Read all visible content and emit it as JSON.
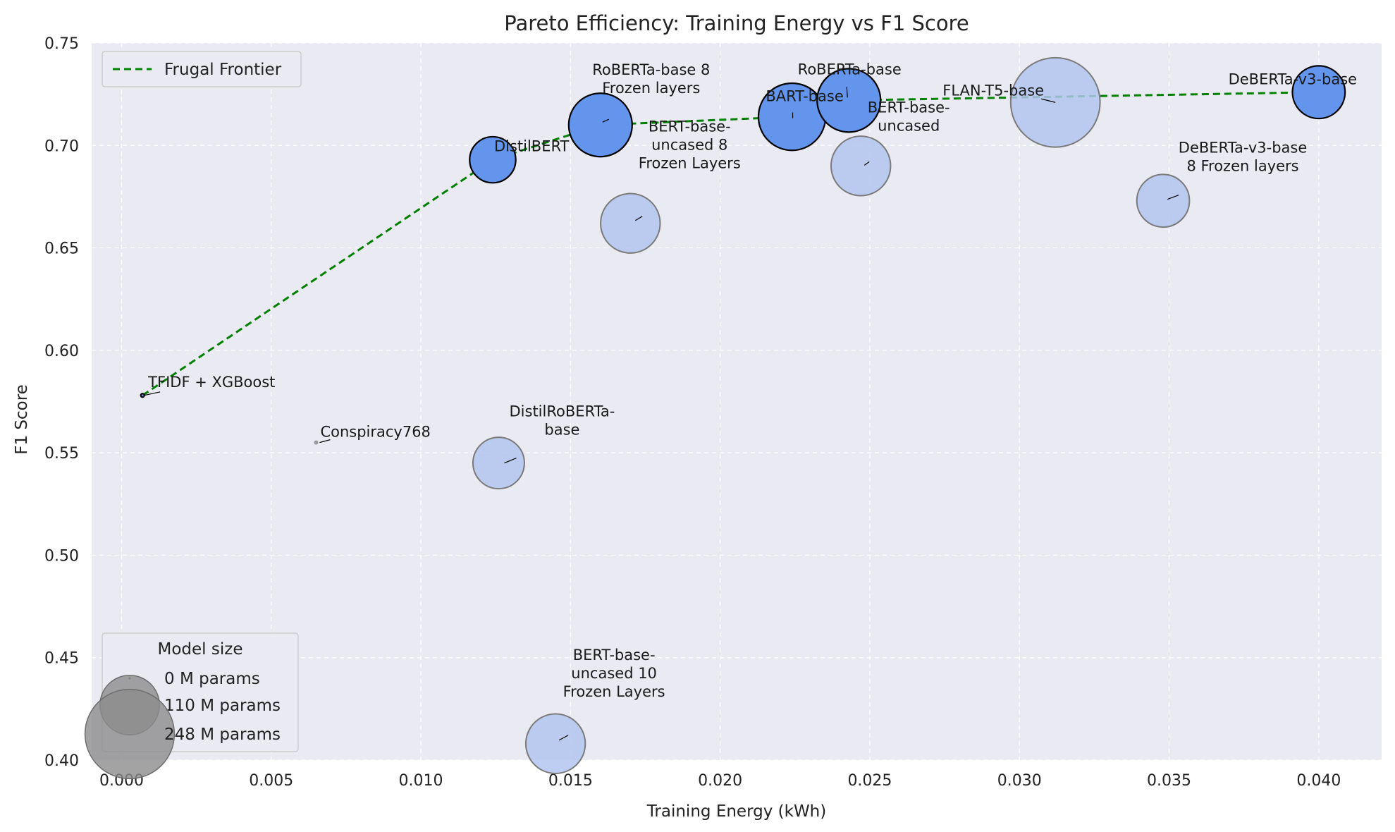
{
  "chart_data": {
    "type": "scatter",
    "title": "Pareto Efficiency: Training Energy vs F1 Score",
    "xlabel": "Training Energy (kWh)",
    "ylabel": "F1 Score",
    "xlim": [
      -0.001,
      0.0421
    ],
    "ylim": [
      0.4,
      0.75
    ],
    "x_ticks": [
      "0.000",
      "0.005",
      "0.010",
      "0.015",
      "0.020",
      "0.025",
      "0.030",
      "0.035",
      "0.040"
    ],
    "y_ticks": [
      "0.40",
      "0.45",
      "0.50",
      "0.55",
      "0.60",
      "0.65",
      "0.70",
      "0.75"
    ],
    "grid": true,
    "colors": {
      "frontier_point": "#6495ed",
      "dominated_point": "#b3c6f0",
      "frontier_line": "#008000",
      "background": "#eaeaf2",
      "size_legend_marker": "#8c8c8c"
    },
    "points": [
      {
        "name": "TFIDF + XGBoost",
        "label_lines": [
          "TFIDF + XGBoost"
        ],
        "x": 0.0007,
        "y": 0.578,
        "params": 0,
        "frontier": true
      },
      {
        "name": "Conspiracy768",
        "label_lines": [
          "Conspiracy768"
        ],
        "x": 0.0065,
        "y": 0.555,
        "params": 1,
        "frontier": false
      },
      {
        "name": "DistilBERT",
        "label_lines": [
          "DistilBERT"
        ],
        "x": 0.0124,
        "y": 0.693,
        "params": 66,
        "frontier": true
      },
      {
        "name": "DistilRoBERTa-base",
        "label_lines": [
          "DistilRoBERTa-",
          "base"
        ],
        "x": 0.0126,
        "y": 0.545,
        "params": 82,
        "frontier": false
      },
      {
        "name": "BERT-base-uncased 10 Frozen Layers",
        "label_lines": [
          "BERT-base-",
          "uncased 10",
          "Frozen Layers"
        ],
        "x": 0.0145,
        "y": 0.408,
        "params": 110,
        "frontier": false
      },
      {
        "name": "RoBERTa-base 8 Frozen layers",
        "label_lines": [
          "RoBERTa-base 8",
          "Frozen layers"
        ],
        "x": 0.016,
        "y": 0.71,
        "params": 125,
        "frontier": true
      },
      {
        "name": "BERT-base-uncased 8 Frozen Layers",
        "label_lines": [
          "BERT-base-",
          "uncased 8",
          "Frozen Layers"
        ],
        "x": 0.017,
        "y": 0.662,
        "params": 110,
        "frontier": false
      },
      {
        "name": "BART-base",
        "label_lines": [
          "BART-base"
        ],
        "x": 0.0224,
        "y": 0.714,
        "params": 140,
        "frontier": true
      },
      {
        "name": "RoBERTa-base",
        "label_lines": [
          "RoBERTa-base"
        ],
        "x": 0.0243,
        "y": 0.722,
        "params": 125,
        "frontier": true
      },
      {
        "name": "BERT-base-uncased",
        "label_lines": [
          "BERT-base-",
          "uncased"
        ],
        "x": 0.0247,
        "y": 0.69,
        "params": 110,
        "frontier": false
      },
      {
        "name": "FLAN-T5-base",
        "label_lines": [
          "FLAN-T5-base"
        ],
        "x": 0.0312,
        "y": 0.721,
        "params": 248,
        "frontier": false
      },
      {
        "name": "DeBERTa-v3-base 8 Frozen layers",
        "label_lines": [
          "DeBERTa-v3-base",
          "8 Frozen layers"
        ],
        "x": 0.0348,
        "y": 0.673,
        "params": 86,
        "frontier": false
      },
      {
        "name": "DeBERTa-v3-base",
        "label_lines": [
          "DeBERTa-v3-base"
        ],
        "x": 0.04,
        "y": 0.726,
        "params": 86,
        "frontier": true
      }
    ],
    "frontier": {
      "name": "Frugal Frontier",
      "x": [
        0.0007,
        0.0124,
        0.016,
        0.0224,
        0.0243,
        0.04
      ],
      "y": [
        0.578,
        0.693,
        0.71,
        0.714,
        0.722,
        0.726
      ]
    },
    "legend": {
      "line_label": "Frugal Frontier",
      "line_legend_placement": "top-left",
      "size_title": "Model size",
      "size_entries": [
        {
          "label": "0 M params",
          "params": 0
        },
        {
          "label": "110 M params",
          "params": 110
        },
        {
          "label": "248 M params",
          "params": 248
        }
      ],
      "size_legend_placement": "bottom-left"
    }
  }
}
